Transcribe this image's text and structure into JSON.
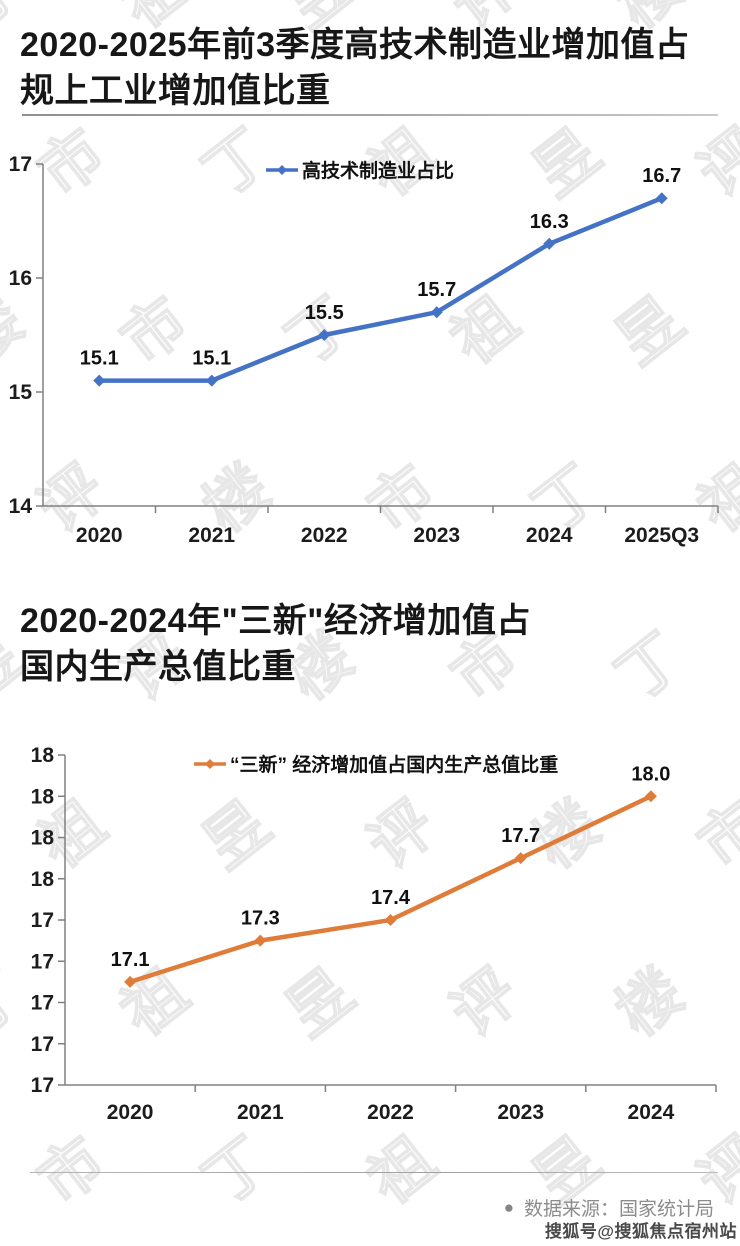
{
  "chart_data": [
    {
      "type": "line",
      "title": "2020-2025年前3季度高技术制造业增加值占\n规上工业增加值比重",
      "legend": "高技术制造业占比",
      "series_color": "#4472c4",
      "categories": [
        "2020",
        "2021",
        "2022",
        "2023",
        "2024",
        "2025Q3"
      ],
      "values": [
        15.1,
        15.1,
        15.5,
        15.7,
        16.3,
        16.7
      ],
      "data_labels": [
        "15.1",
        "15.1",
        "15.5",
        "15.7",
        "16.3",
        "16.7"
      ],
      "ylim": [
        14,
        17
      ],
      "y_tick_labels": [
        "14",
        "15",
        "16",
        "17"
      ],
      "grid": false,
      "legend_position": "top-center",
      "marker": "diamond"
    },
    {
      "type": "line",
      "title": "2020-2024年\"三新\"经济增加值占\n国内生产总值比重",
      "legend": "“三新” 经济增加值占国内生产总值比重",
      "series_color": "#e07c3a",
      "categories": [
        "2020",
        "2021",
        "2022",
        "2023",
        "2024"
      ],
      "values": [
        17.1,
        17.3,
        17.4,
        17.7,
        18.0
      ],
      "data_labels": [
        "17.1",
        "17.3",
        "17.4",
        "17.7",
        "18.0"
      ],
      "ylim": [
        16.6,
        18.2
      ],
      "y_tick_labels": [
        "17",
        "17",
        "17",
        "17",
        "17",
        "18",
        "18",
        "18",
        "18"
      ],
      "grid": false,
      "legend_position": "top-center",
      "marker": "diamond"
    }
  ],
  "footer": {
    "bullet": "●",
    "source": "数据来源：国家统计局"
  },
  "watermarks": {
    "brand": "丁祖昱评楼市",
    "sohu": "搜狐号@搜狐焦点宿州站"
  },
  "colors": {
    "series_blue": "#4472c4",
    "series_orange": "#e07c3a",
    "axis": "#808080",
    "footer_gray": "#8c8c8c",
    "watermark_gray": "#e7e7e7"
  }
}
